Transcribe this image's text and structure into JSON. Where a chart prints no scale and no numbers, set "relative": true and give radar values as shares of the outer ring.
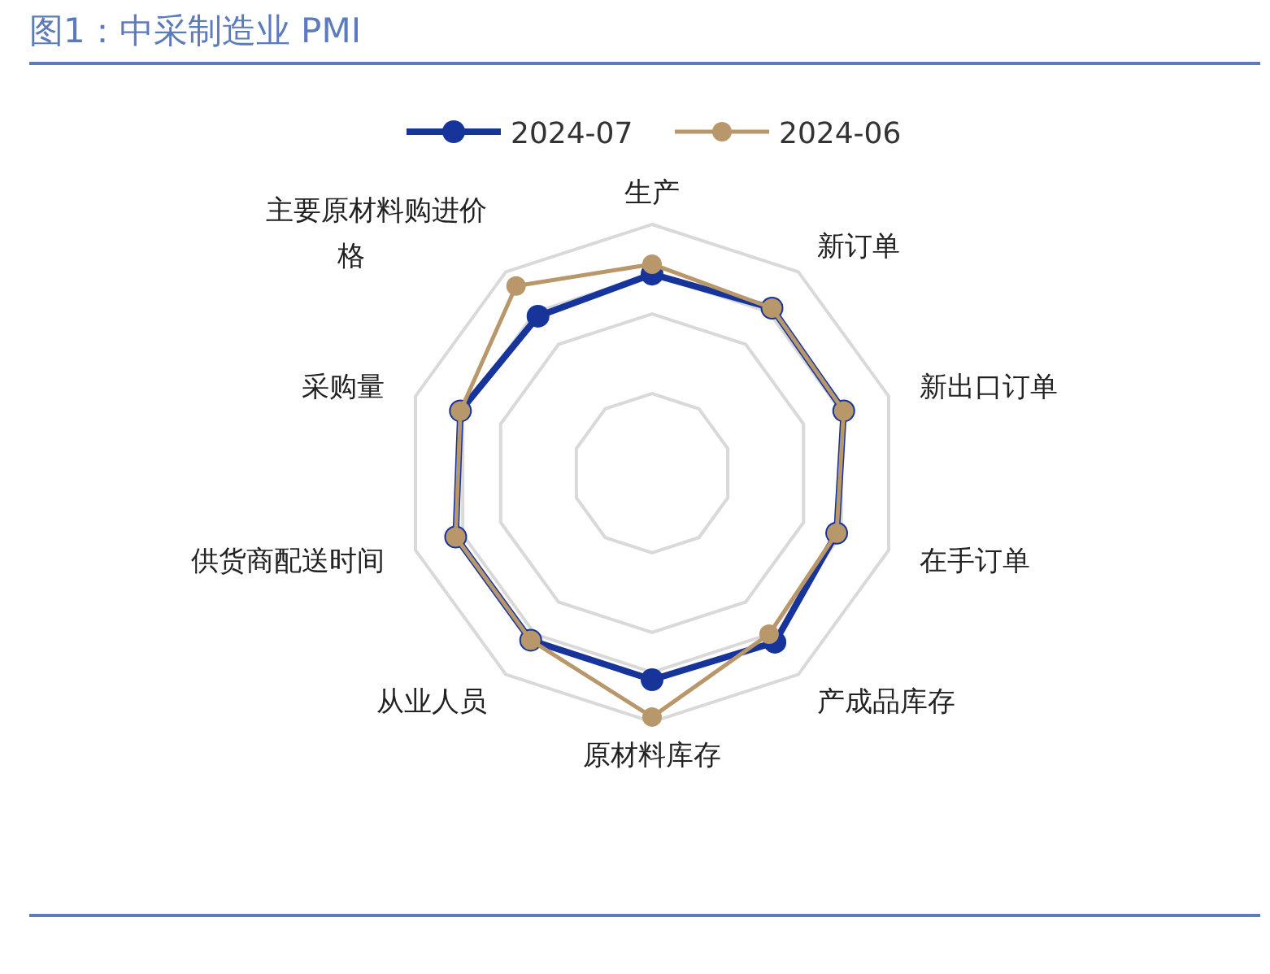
{
  "chart_data": {
    "type": "radar",
    "title": "图1：中采制造业 PMI",
    "relative": true,
    "grid": true,
    "legend": "top",
    "marker": "circle",
    "categories": [
      "生产",
      "新订单",
      "新出口订单",
      "在手订单",
      "产成品库存",
      "原材料库存",
      "从业人员",
      "供货商配送时间",
      "采购量",
      "主要原材料购进价格"
    ],
    "series": [
      {
        "name": "2024-07",
        "color": "#17349a",
        "values": [
          0.8,
          0.82,
          0.81,
          0.78,
          0.84,
          0.83,
          0.83,
          0.83,
          0.81,
          0.78
        ]
      },
      {
        "name": "2024-06",
        "color": "#b8976a",
        "values": [
          0.84,
          0.82,
          0.81,
          0.78,
          0.8,
          0.98,
          0.83,
          0.83,
          0.81,
          0.93
        ]
      }
    ]
  }
}
